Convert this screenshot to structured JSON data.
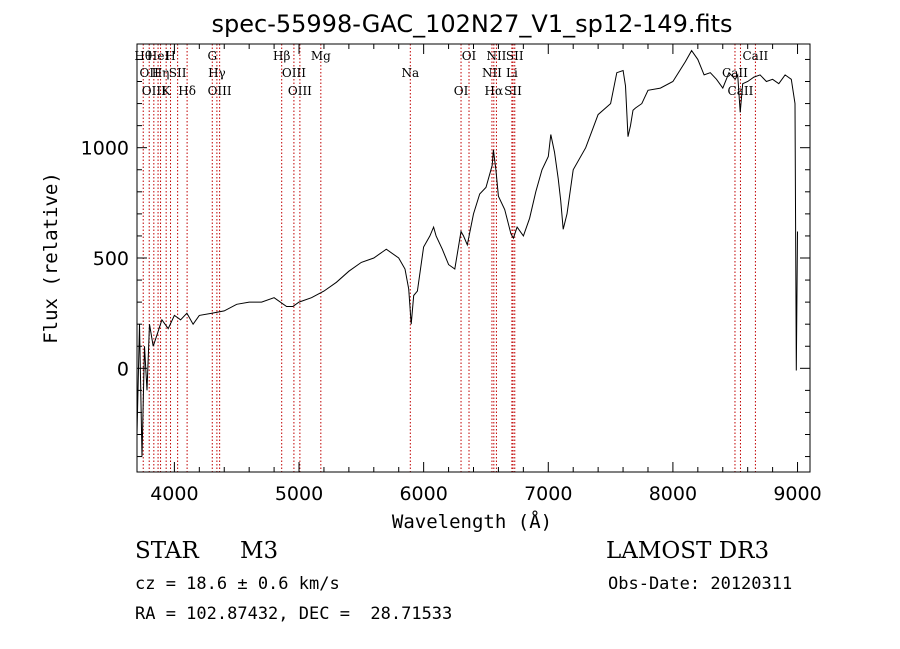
{
  "chart_data": {
    "type": "line",
    "title": "spec-55998-GAC_102N27_V1_sp12-149.fits",
    "xlabel": "Wavelength (Å)",
    "ylabel": "Flux (relative)",
    "xlim": [
      3700,
      9100
    ],
    "ylim": [
      -470,
      1470
    ],
    "xticks": [
      4000,
      5000,
      6000,
      7000,
      8000,
      9000
    ],
    "yticks": [
      0,
      500,
      1000
    ],
    "series": [
      {
        "name": "spectrum",
        "x": [
          3700,
          3720,
          3740,
          3760,
          3780,
          3800,
          3830,
          3860,
          3900,
          3950,
          4000,
          4050,
          4100,
          4150,
          4200,
          4300,
          4400,
          4500,
          4600,
          4700,
          4800,
          4900,
          4950,
          5000,
          5100,
          5200,
          5300,
          5400,
          5500,
          5600,
          5700,
          5800,
          5850,
          5880,
          5900,
          5920,
          5950,
          6000,
          6050,
          6080,
          6100,
          6150,
          6200,
          6250,
          6300,
          6320,
          6350,
          6400,
          6450,
          6500,
          6550,
          6560,
          6580,
          6600,
          6650,
          6700,
          6720,
          6750,
          6800,
          6850,
          6900,
          6950,
          7000,
          7020,
          7050,
          7080,
          7100,
          7120,
          7150,
          7200,
          7300,
          7400,
          7500,
          7550,
          7600,
          7620,
          7640,
          7660,
          7680,
          7700,
          7750,
          7800,
          7900,
          8000,
          8100,
          8150,
          8200,
          8250,
          8300,
          8350,
          8400,
          8450,
          8500,
          8520,
          8540,
          8560,
          8600,
          8650,
          8700,
          8750,
          8800,
          8850,
          8900,
          8950,
          8980,
          8990,
          9000
        ],
        "y": [
          -300,
          200,
          -400,
          100,
          -100,
          200,
          100,
          150,
          220,
          180,
          240,
          220,
          250,
          200,
          240,
          250,
          260,
          290,
          300,
          300,
          320,
          280,
          280,
          300,
          320,
          350,
          390,
          440,
          480,
          500,
          540,
          500,
          450,
          360,
          200,
          330,
          350,
          550,
          600,
          640,
          600,
          540,
          470,
          450,
          620,
          600,
          560,
          700,
          790,
          820,
          920,
          990,
          900,
          780,
          720,
          610,
          590,
          640,
          600,
          680,
          800,
          900,
          960,
          1060,
          980,
          860,
          760,
          630,
          700,
          900,
          1000,
          1150,
          1200,
          1340,
          1350,
          1280,
          1050,
          1100,
          1170,
          1180,
          1200,
          1260,
          1270,
          1300,
          1390,
          1440,
          1400,
          1330,
          1340,
          1310,
          1270,
          1340,
          1310,
          1330,
          1160,
          1290,
          1300,
          1320,
          1330,
          1300,
          1310,
          1290,
          1330,
          1310,
          1200,
          -10,
          620
        ]
      }
    ],
    "lines": [
      {
        "wl": 3750,
        "label": "Hθ"
      },
      {
        "wl": 3798,
        "label": "OII"
      },
      {
        "wl": 3835,
        "label": "OIII"
      },
      {
        "wl": 3869,
        "label": "HeI"
      },
      {
        "wl": 3889,
        "label": "Hη"
      },
      {
        "wl": 3934,
        "label": "K"
      },
      {
        "wl": 3969,
        "label": "H"
      },
      {
        "wl": 4026,
        "label": "SII"
      },
      {
        "wl": 4102,
        "label": "Hδ"
      },
      {
        "wl": 4304,
        "label": "G"
      },
      {
        "wl": 4341,
        "label": "Hγ"
      },
      {
        "wl": 4363,
        "label": "OIII"
      },
      {
        "wl": 4861,
        "label": "Hβ"
      },
      {
        "wl": 4959,
        "label": "OIII"
      },
      {
        "wl": 5007,
        "label": "OIII"
      },
      {
        "wl": 5175,
        "label": "Mg"
      },
      {
        "wl": 5893,
        "label": "Na"
      },
      {
        "wl": 6300,
        "label": "OI"
      },
      {
        "wl": 6364,
        "label": "OI"
      },
      {
        "wl": 6548,
        "label": "NII"
      },
      {
        "wl": 6563,
        "label": "Hα"
      },
      {
        "wl": 6584,
        "label": "NII"
      },
      {
        "wl": 6708,
        "label": "Li"
      },
      {
        "wl": 6717,
        "label": "SII"
      },
      {
        "wl": 6731,
        "label": "SII"
      },
      {
        "wl": 8498,
        "label": "CaII"
      },
      {
        "wl": 8542,
        "label": "CaII"
      },
      {
        "wl": 8662,
        "label": "CaII"
      }
    ]
  },
  "info": {
    "object_class": "STAR",
    "subclass": "M3",
    "survey": "LAMOST DR3",
    "cz": "cz = 18.6 ± 0.6 km/s",
    "obs_date": "Obs-Date: 20120311",
    "coords": "RA = 102.87432, DEC =  28.71533"
  },
  "colors": {
    "line_marker": "#c00000",
    "spectrum": "#000000"
  }
}
